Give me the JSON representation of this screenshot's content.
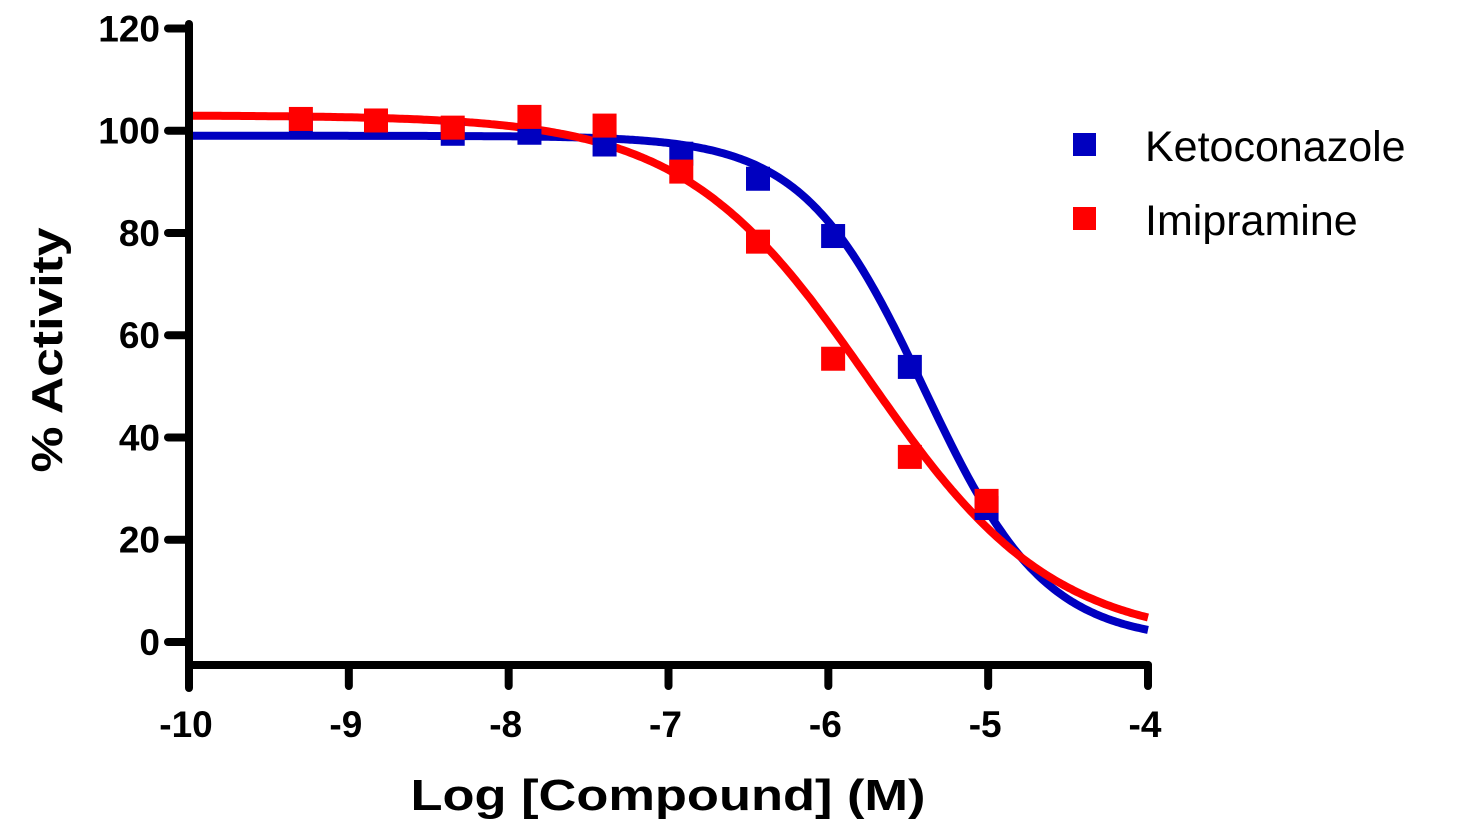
{
  "chart_data": {
    "type": "scatter",
    "title": "",
    "xlabel": "Log [Compound] (M)",
    "ylabel": "% Activity",
    "xlim": [
      -10,
      -4
    ],
    "ylim": [
      -4,
      120
    ],
    "xticks": [
      -10,
      -9,
      -8,
      -7,
      -6,
      -5,
      -4
    ],
    "xtick_labels": [
      "-10",
      "-9",
      "-8",
      "-7",
      "-6",
      "-5",
      "-4"
    ],
    "yticks": [
      0,
      20,
      40,
      60,
      80,
      100,
      120
    ],
    "ytick_labels": [
      "0",
      "20",
      "40",
      "60",
      "80",
      "100",
      "120"
    ],
    "grid": false,
    "legend_position": "top-right",
    "series": [
      {
        "name": "Ketoconazole",
        "color": "#0000c0",
        "marker": "square",
        "x": [
          -9.3,
          -8.83,
          -8.35,
          -7.87,
          -7.4,
          -6.92,
          -6.44,
          -5.97,
          -5.49,
          -5.01
        ],
        "y": [
          101.0,
          100.8,
          99.4,
          99.6,
          97.3,
          95.5,
          90.6,
          79.4,
          53.8,
          26.2
        ],
        "fit": {
          "model": "sigmoidal dose-response",
          "top": 99,
          "bottom": 0,
          "logIC50": -5.4,
          "hill": 1.15
        }
      },
      {
        "name": "Imipramine",
        "color": "#ff0000",
        "marker": "square",
        "x": [
          -9.3,
          -8.83,
          -8.35,
          -7.87,
          -7.4,
          -6.92,
          -6.44,
          -5.97,
          -5.49,
          -5.01
        ],
        "y": [
          102.3,
          102.0,
          100.6,
          102.7,
          101.0,
          92.0,
          78.3,
          55.4,
          36.2,
          27.6
        ],
        "fit": {
          "model": "sigmoidal dose-response",
          "top": 103,
          "bottom": 0,
          "logIC50": -5.75,
          "hill": 0.75
        }
      }
    ]
  }
}
